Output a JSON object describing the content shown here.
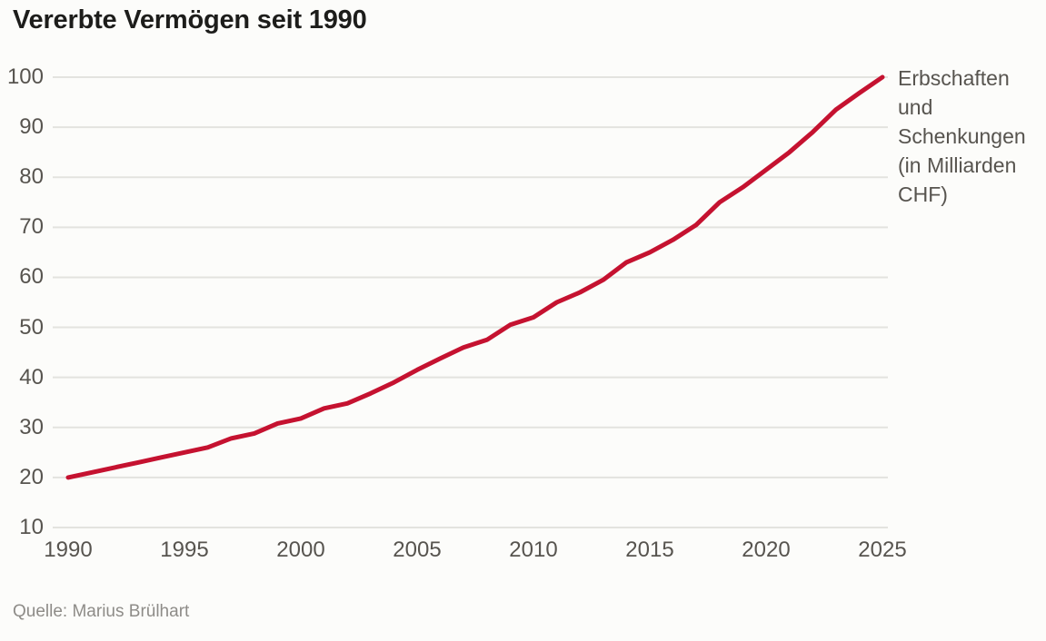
{
  "title": "Vererbte Vermögen seit 1990",
  "legend": {
    "label": "Erbschaften und Schenkungen (in Milliarden CHF)"
  },
  "source": "Quelle: Marius Brülhart",
  "colors": {
    "line": "#c51230",
    "grid": "#e3e3df",
    "axis_text": "#57544f",
    "title_text": "#1d1d1b",
    "source_text": "#8e8c88",
    "background": "#fcfcfa"
  },
  "chart_data": {
    "type": "line",
    "title": "Vererbte Vermögen seit 1990",
    "xlabel": "",
    "ylabel": "Erbschaften und Schenkungen (in Milliarden CHF)",
    "xlim": [
      1990,
      2025
    ],
    "ylim": [
      10,
      100
    ],
    "x_ticks": [
      1990,
      1995,
      2000,
      2005,
      2010,
      2015,
      2020,
      2025
    ],
    "y_ticks": [
      10,
      20,
      30,
      40,
      50,
      60,
      70,
      80,
      90,
      100
    ],
    "grid": "horizontal",
    "legend_position": "right",
    "series": [
      {
        "name": "Erbschaften und Schenkungen (in Milliarden CHF)",
        "x": [
          1990,
          1991,
          1992,
          1993,
          1994,
          1995,
          1996,
          1997,
          1998,
          1999,
          2000,
          2001,
          2002,
          2003,
          2004,
          2005,
          2006,
          2007,
          2008,
          2009,
          2010,
          2011,
          2012,
          2013,
          2014,
          2015,
          2016,
          2017,
          2018,
          2019,
          2020,
          2021,
          2022,
          2023,
          2024,
          2025
        ],
        "values": [
          20,
          21,
          22,
          23,
          24,
          25,
          26,
          27.8,
          28.8,
          30.8,
          31.8,
          33.8,
          34.8,
          36.8,
          39,
          41.5,
          43.8,
          46,
          47.5,
          50.5,
          52,
          55,
          57,
          59.5,
          63,
          65,
          67.5,
          70.5,
          75,
          78,
          81.5,
          85,
          89,
          93.5,
          96.8,
          100
        ]
      }
    ]
  }
}
